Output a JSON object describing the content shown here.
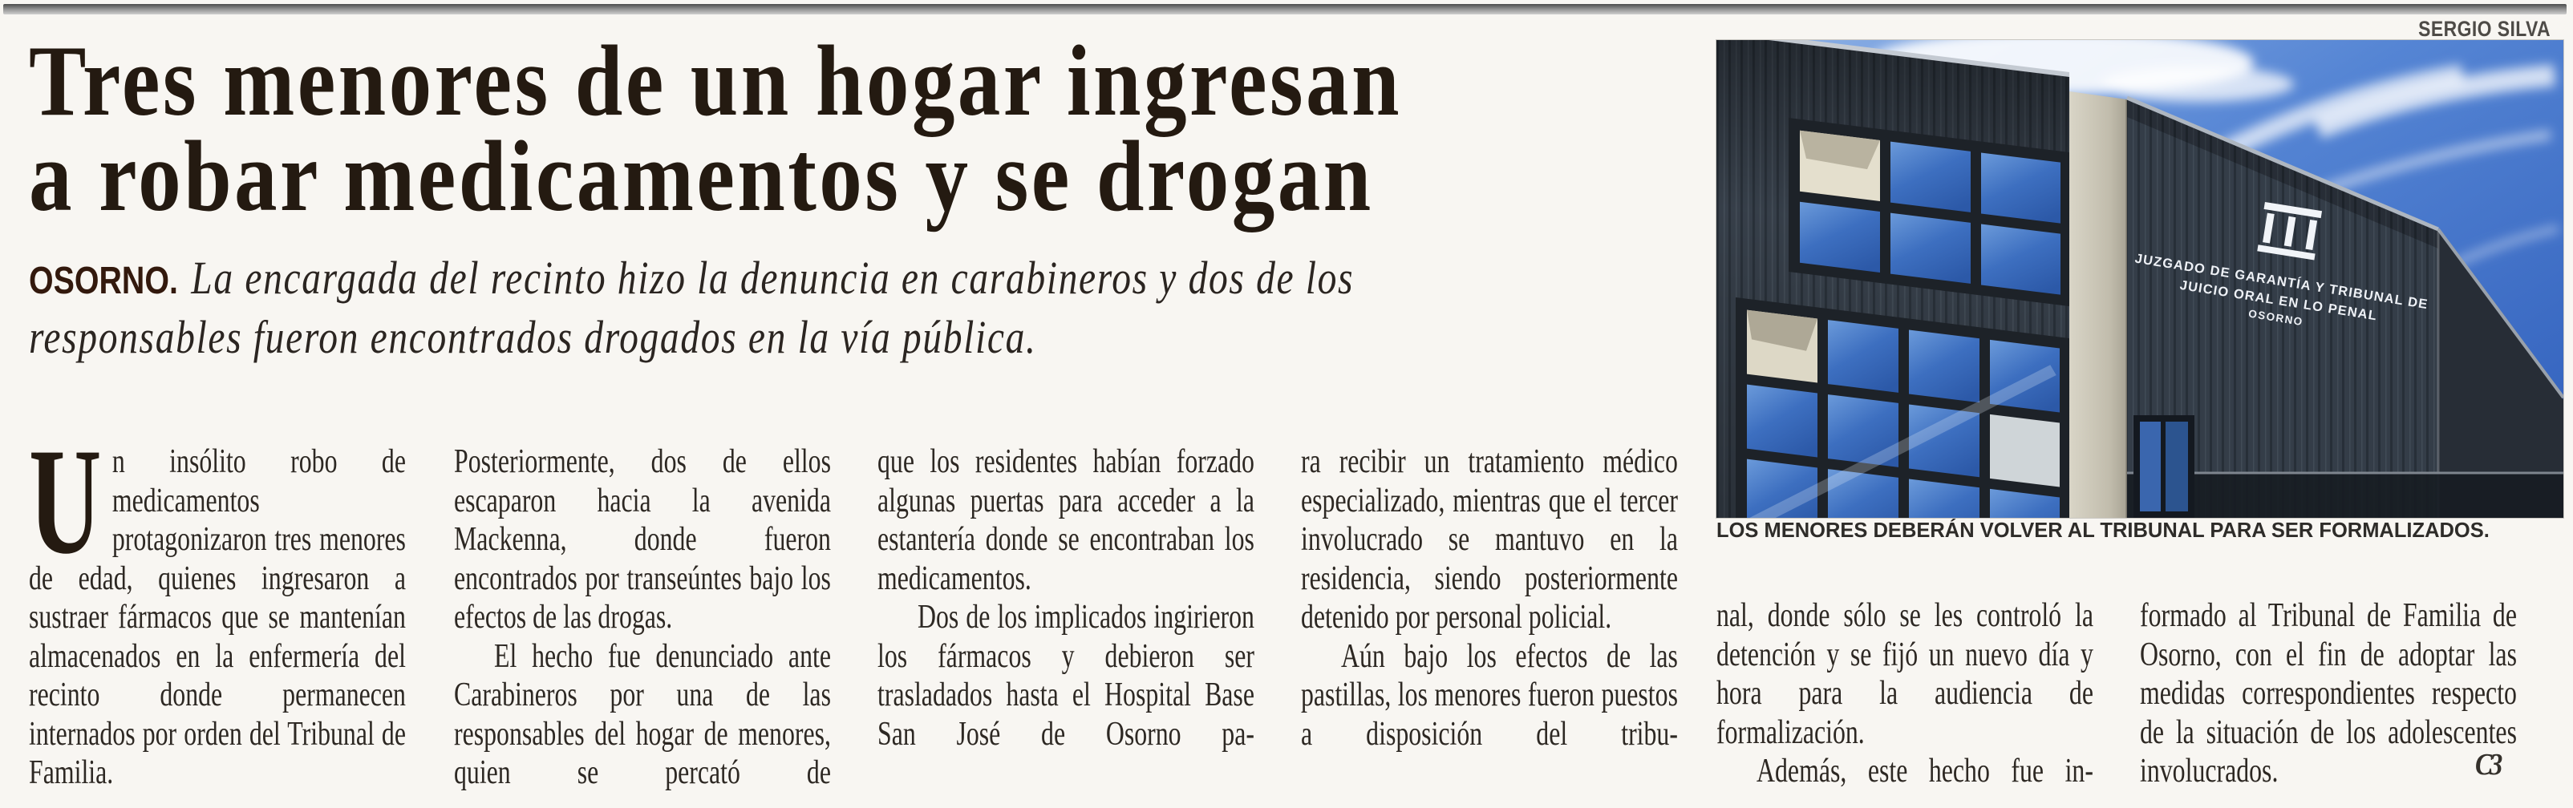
{
  "article": {
    "headline_lines": [
      "Tres menores de un hogar ingresan",
      "a robar medicamentos y se drogan"
    ],
    "kicker": "OSORNO.",
    "deck": "La encargada del recinto hizo la denuncia en carabineros y dos de los responsables fueron encontrados drogados en la vía pública.",
    "columns": [
      {
        "segments": [
          {
            "drop_cap": "U",
            "indent": false,
            "justify_last": false,
            "text": "n insólito robo de medicamentos protagonizaron tres menores de edad, quienes ingresaron a sustraer fármacos que se mantenían almacenados en la enfermería del recinto donde permanecen internados por orden del Tribunal de Familia."
          }
        ]
      },
      {
        "segments": [
          {
            "indent": false,
            "justify_last": false,
            "text": "Posteriormente, dos de ellos escaparon hacia la avenida Mackenna, donde fueron encontrados por transeúntes bajo los efectos de las drogas."
          },
          {
            "indent": true,
            "justify_last": true,
            "text": "El hecho fue denunciado ante Carabineros por una de las responsables del hogar de menores, quien se percató de"
          }
        ]
      },
      {
        "segments": [
          {
            "indent": false,
            "justify_last": false,
            "text": "que los residentes habían forzado algunas puertas para acceder a la estantería donde se encontraban los medicamentos."
          },
          {
            "indent": true,
            "justify_last": true,
            "text": "Dos de los implicados ingirieron los fármacos y debieron ser trasladados hasta el Hospital Base San José de Osorno pa-"
          }
        ]
      },
      {
        "segments": [
          {
            "indent": false,
            "justify_last": false,
            "text": "ra recibir un tratamiento médico especializado, mientras que el tercer involucrado se mantuvo en la residencia, siendo posteriormente detenido por personal policial."
          },
          {
            "indent": true,
            "justify_last": true,
            "text": "Aún bajo los efectos de las pastillas, los menores fueron puestos a disposición del tribu-"
          }
        ]
      },
      {
        "segments": [
          {
            "indent": false,
            "justify_last": false,
            "text": "nal, donde sólo se les controló la detención y se fijó un nuevo día y hora para la audiencia de formalización."
          },
          {
            "indent": true,
            "justify_last": true,
            "text": "Además, este hecho fue in-"
          }
        ]
      },
      {
        "segments": [
          {
            "indent": false,
            "justify_last": false,
            "text": "formado al Tribunal de Familia de Osorno, con el fin de adoptar las medidas correspondientes respecto de la situación de los adolescentes involucrados."
          }
        ]
      }
    ],
    "end_mark": "C3"
  },
  "photo": {
    "credit": "SERGIO SILVA",
    "caption": "LOS MENORES DEBERÁN VOLVER AL TRIBUNAL PARA SER FORMALIZADOS.",
    "building_sign": {
      "line1": "JUZGADO DE GARANTÍA Y TRIBUNAL DE",
      "line2": "JUICIO ORAL EN LO PENAL",
      "line3": "OSORNO"
    }
  },
  "colors": {
    "paper": "#f8f6f2",
    "headline_ink": "#241a11",
    "kicker_ink": "#33190d",
    "body_ink": "#2d2823",
    "sky_blue": "#3a67c2",
    "building_gray": "#38414c",
    "pillar_beige": "#c9c4b6"
  }
}
